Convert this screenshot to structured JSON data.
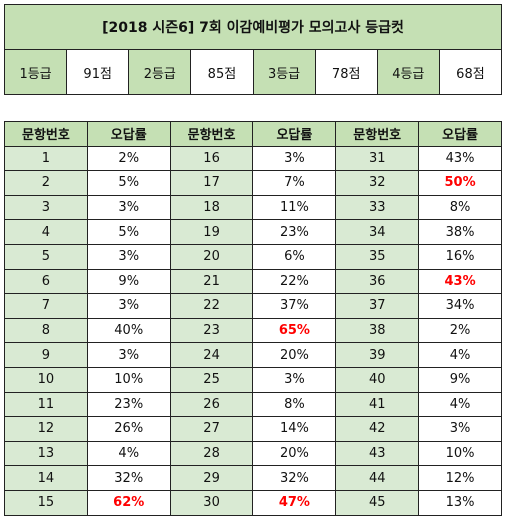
{
  "cutoff": {
    "title": "[2018 시즌6] 7회 이감예비평가 모의고사 등급컷",
    "grades": [
      {
        "grade": "1등급",
        "score": "91점"
      },
      {
        "grade": "2등급",
        "score": "85점"
      },
      {
        "grade": "3등급",
        "score": "78점"
      },
      {
        "grade": "4등급",
        "score": "68점"
      }
    ]
  },
  "rates": {
    "headers": [
      "문항번호",
      "오답률",
      "문항번호",
      "오답률",
      "문항번호",
      "오답률"
    ],
    "highlight_color": "#ff0000",
    "rows": [
      [
        {
          "q": "1",
          "r": "2%"
        },
        {
          "q": "16",
          "r": "3%"
        },
        {
          "q": "31",
          "r": "43%"
        }
      ],
      [
        {
          "q": "2",
          "r": "5%"
        },
        {
          "q": "17",
          "r": "7%"
        },
        {
          "q": "32",
          "r": "50%",
          "hl": true
        }
      ],
      [
        {
          "q": "3",
          "r": "3%"
        },
        {
          "q": "18",
          "r": "11%"
        },
        {
          "q": "33",
          "r": "8%"
        }
      ],
      [
        {
          "q": "4",
          "r": "5%"
        },
        {
          "q": "19",
          "r": "23%"
        },
        {
          "q": "34",
          "r": "38%"
        }
      ],
      [
        {
          "q": "5",
          "r": "3%"
        },
        {
          "q": "20",
          "r": "6%"
        },
        {
          "q": "35",
          "r": "16%"
        }
      ],
      [
        {
          "q": "6",
          "r": "9%"
        },
        {
          "q": "21",
          "r": "22%"
        },
        {
          "q": "36",
          "r": "43%",
          "hl": true
        }
      ],
      [
        {
          "q": "7",
          "r": "3%"
        },
        {
          "q": "22",
          "r": "37%"
        },
        {
          "q": "37",
          "r": "34%"
        }
      ],
      [
        {
          "q": "8",
          "r": "40%"
        },
        {
          "q": "23",
          "r": "65%",
          "hl": true
        },
        {
          "q": "38",
          "r": "2%"
        }
      ],
      [
        {
          "q": "9",
          "r": "3%"
        },
        {
          "q": "24",
          "r": "20%"
        },
        {
          "q": "39",
          "r": "4%"
        }
      ],
      [
        {
          "q": "10",
          "r": "10%"
        },
        {
          "q": "25",
          "r": "3%"
        },
        {
          "q": "40",
          "r": "9%"
        }
      ],
      [
        {
          "q": "11",
          "r": "23%"
        },
        {
          "q": "26",
          "r": "8%"
        },
        {
          "q": "41",
          "r": "4%"
        }
      ],
      [
        {
          "q": "12",
          "r": "26%"
        },
        {
          "q": "27",
          "r": "14%"
        },
        {
          "q": "42",
          "r": "3%"
        }
      ],
      [
        {
          "q": "13",
          "r": "4%"
        },
        {
          "q": "28",
          "r": "20%"
        },
        {
          "q": "43",
          "r": "10%"
        }
      ],
      [
        {
          "q": "14",
          "r": "32%"
        },
        {
          "q": "29",
          "r": "32%"
        },
        {
          "q": "44",
          "r": "12%"
        }
      ],
      [
        {
          "q": "15",
          "r": "62%",
          "hl": true
        },
        {
          "q": "30",
          "r": "47%",
          "hl": true
        },
        {
          "q": "45",
          "r": "13%"
        }
      ]
    ]
  }
}
